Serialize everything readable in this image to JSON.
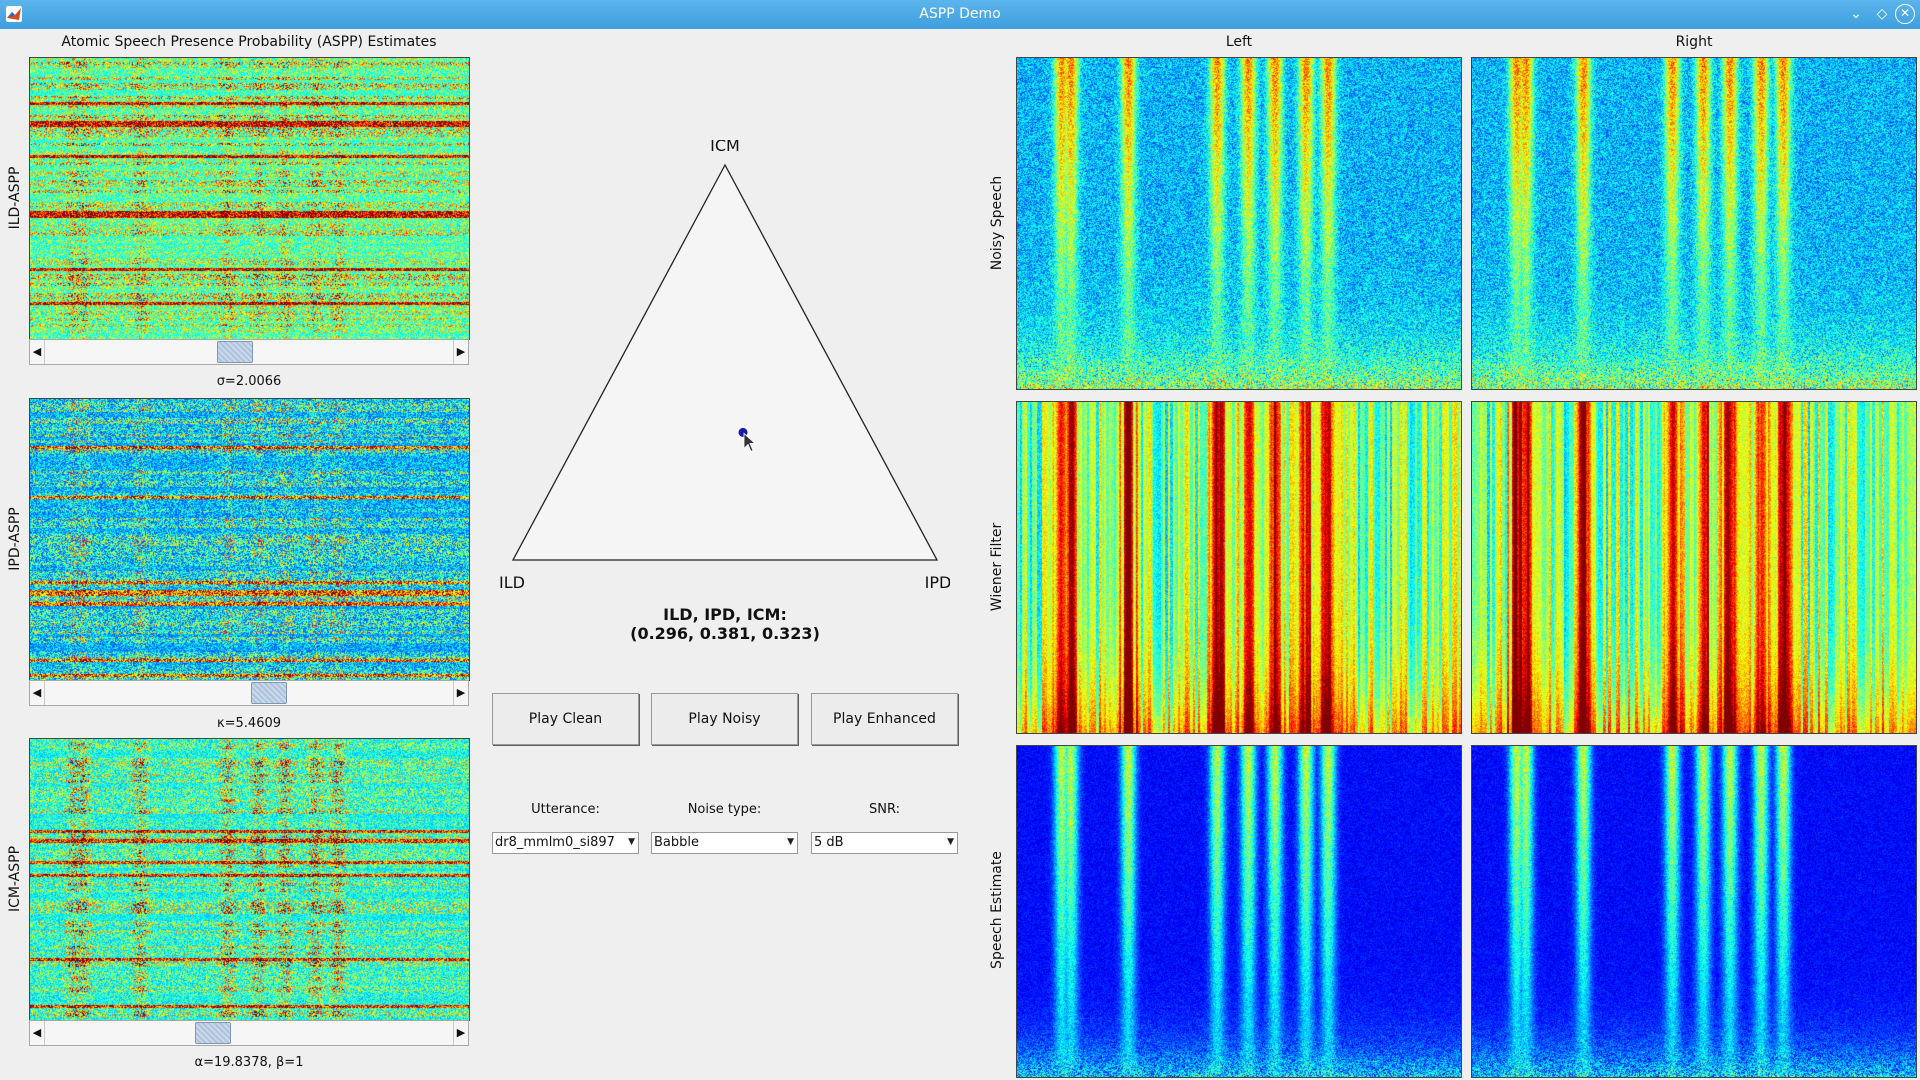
{
  "window": {
    "title": "ASPP Demo"
  },
  "aspp": {
    "header": "Atomic Speech Presence Probability (ASPP) Estimates",
    "panels": [
      {
        "ylabel": "ILD-ASPP",
        "param_label": "σ=2.0066",
        "slider_value": 0.46
      },
      {
        "ylabel": "IPD-ASPP",
        "param_label": "κ=5.4609",
        "slider_value": 0.55
      },
      {
        "ylabel": "ICM-ASPP",
        "param_label": "α=19.8378, β=1",
        "slider_value": 0.4
      }
    ]
  },
  "triangle": {
    "vertices": {
      "top": "ICM",
      "left": "ILD",
      "right": "IPD"
    },
    "weights": {
      "ild": 0.296,
      "ipd": 0.381,
      "icm": 0.323
    },
    "readout_title": "ILD, IPD, ICM:",
    "readout_values": "(0.296, 0.381, 0.323)"
  },
  "buttons": {
    "play_clean": "Play Clean",
    "play_noisy": "Play Noisy",
    "play_enhanced": "Play Enhanced"
  },
  "controls": {
    "utterance": {
      "label": "Utterance:",
      "value": "dr8_mmlm0_si897"
    },
    "noise_type": {
      "label": "Noise type:",
      "value": "Babble"
    },
    "snr": {
      "label": "SNR:",
      "value": "5 dB"
    }
  },
  "spectrograms": {
    "columns": [
      "Left",
      "Right"
    ],
    "rows": [
      "Noisy Speech",
      "Wiener Filter",
      "Speech Estimate"
    ]
  },
  "colors": {
    "titlebar": "#4aa8e6",
    "background": "#efefef",
    "marker": "#1a1aa8"
  },
  "icons": {
    "app": "matlab-logo-icon",
    "minimize": "chevron-down-icon",
    "maximize": "diamond-icon",
    "close": "close-icon"
  }
}
